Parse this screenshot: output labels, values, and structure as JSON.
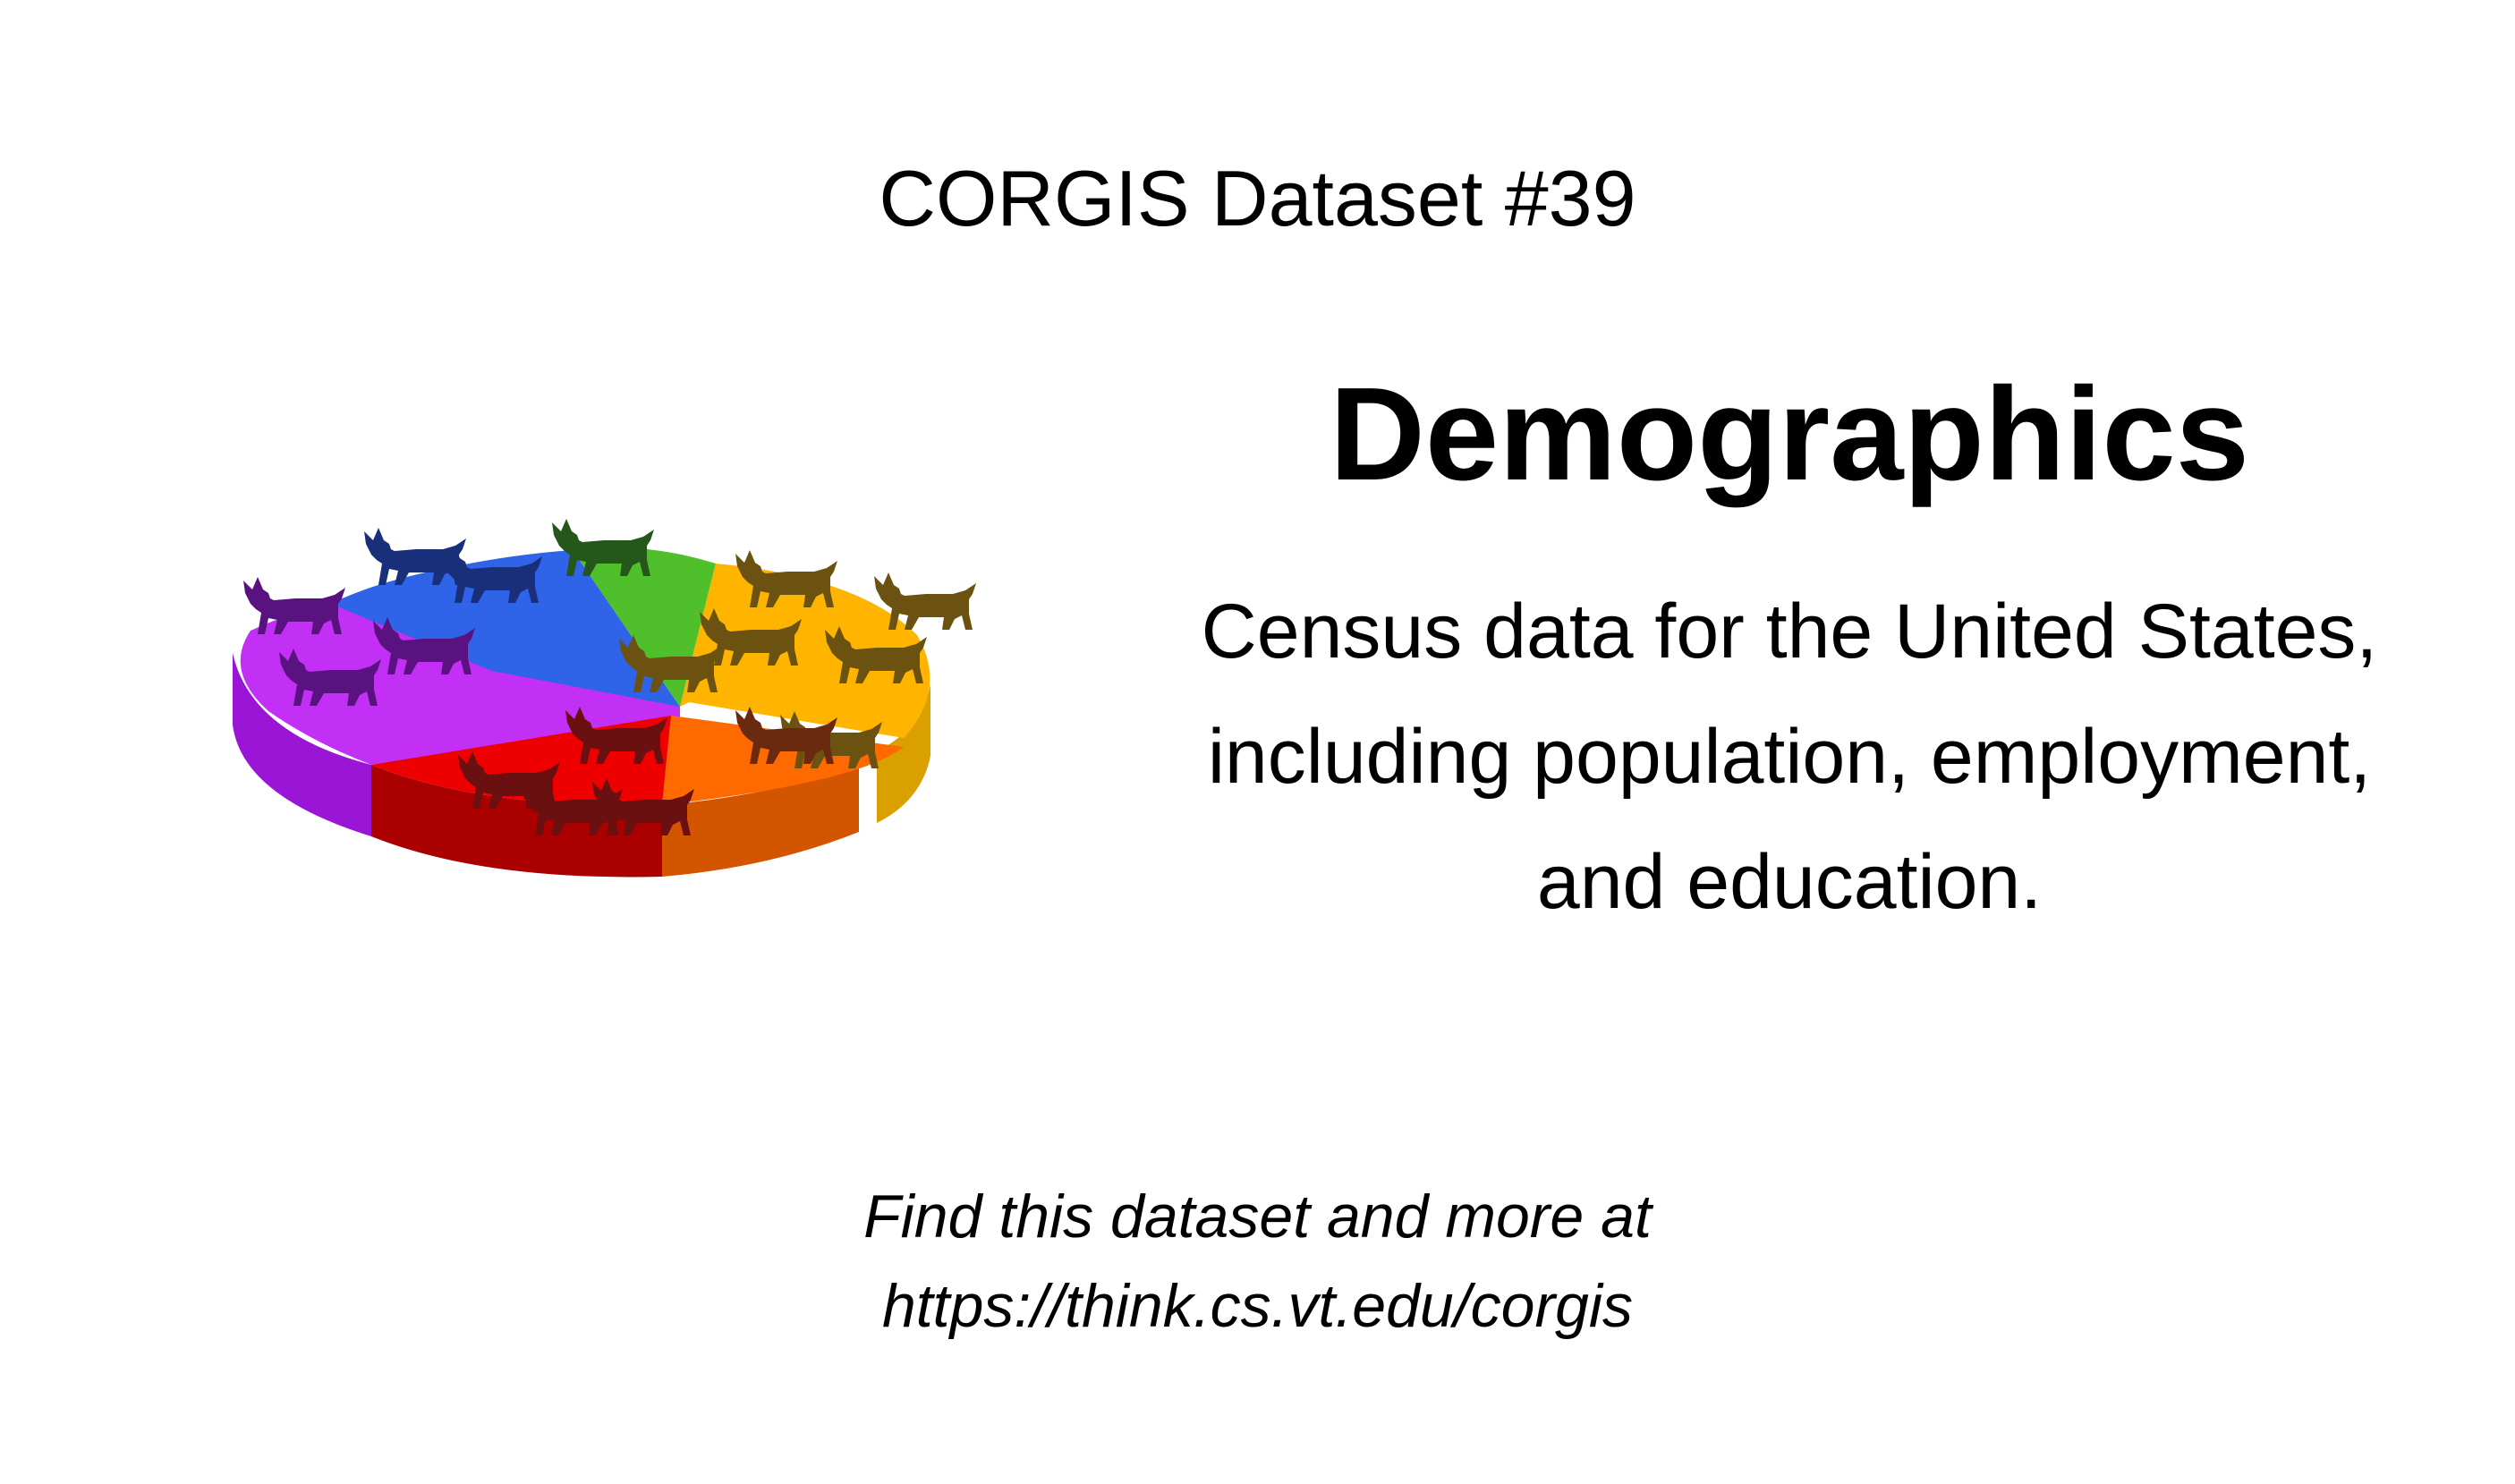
{
  "header": {
    "dataset_number": "CORGIS Dataset #39"
  },
  "main": {
    "title": "Demographics",
    "description": "Census data for the United States, including population, employment, and education."
  },
  "footer": {
    "line1": "Find this dataset and more at",
    "line2": "https://think.cs.vt.edu/corgis"
  },
  "logo": {
    "icon": "corgi-pie-chart-icon",
    "slice_colors": [
      "#c22ff5",
      "#2f63e8",
      "#4fbf2b",
      "#ffb400",
      "#ff6a00",
      "#ee0000"
    ]
  }
}
